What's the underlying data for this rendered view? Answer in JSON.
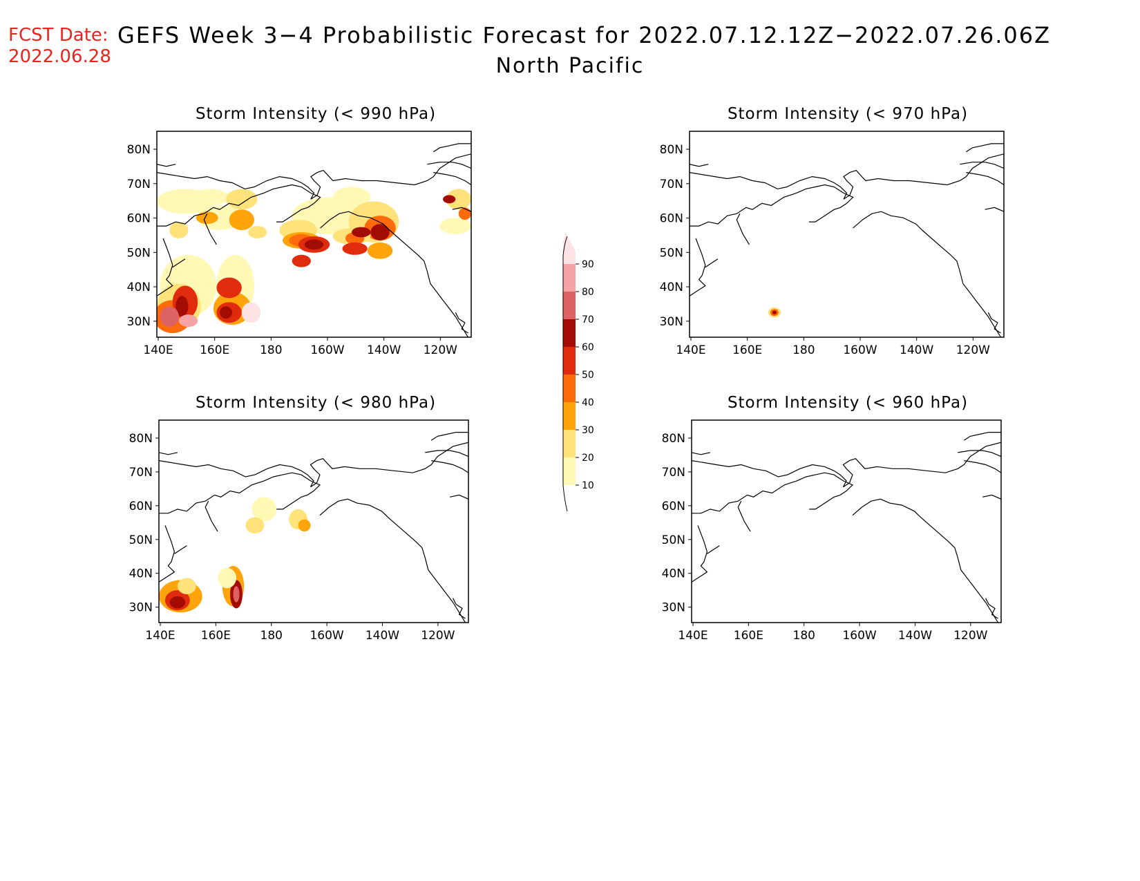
{
  "header": {
    "fcst_label": "FCST Date:",
    "fcst_date": "2022.06.28",
    "title": "GEFS Week 3−4 Probabilistic Forecast for 2022.07.12.12Z−2022.07.26.06Z",
    "subtitle": "North Pacific"
  },
  "axes": {
    "lon_ticks": [
      "140E",
      "160E",
      "180",
      "160W",
      "140W",
      "120W"
    ],
    "lat_ticks": [
      "80N",
      "70N",
      "60N",
      "50N",
      "40N",
      "30N"
    ]
  },
  "panels": [
    {
      "id": "p990",
      "title": "Storm Intensity (< 990 hPa)"
    },
    {
      "id": "p970",
      "title": "Storm Intensity (< 970 hPa)"
    },
    {
      "id": "p980",
      "title": "Storm Intensity (< 980 hPa)"
    },
    {
      "id": "p960",
      "title": "Storm Intensity (< 960 hPa)"
    }
  ],
  "colorbar": {
    "levels": [
      "10",
      "20",
      "30",
      "40",
      "50",
      "60",
      "70",
      "80",
      "90"
    ],
    "colors": [
      "#fff9b5",
      "#ffe27a",
      "#ffa40a",
      "#ff6a0a",
      "#e12b0d",
      "#a30c04",
      "#dc6263",
      "#f5a3a5",
      "#fde3e4"
    ]
  }
}
